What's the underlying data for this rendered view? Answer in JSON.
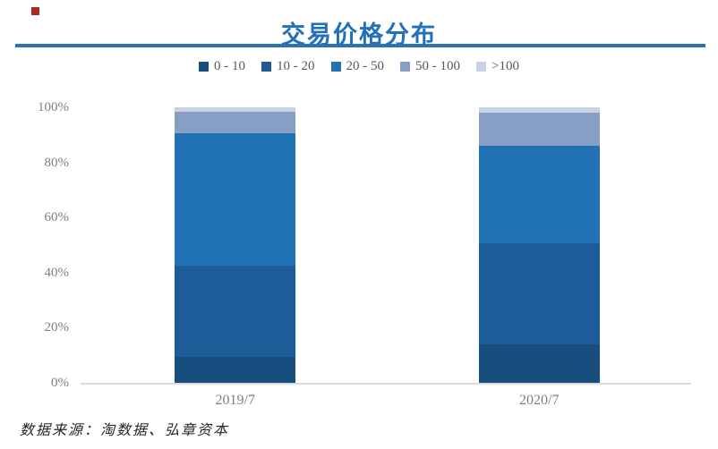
{
  "slide": {
    "background": "#FFFFFF",
    "decoration_color": "#AE2A21"
  },
  "header": {
    "title": "交易价格分布",
    "title_color": "#2271B8",
    "underline_color": "#2A72B8"
  },
  "footer": {
    "source_text": "数据来源：淘数据、弘章资本",
    "text_color": "#262626"
  },
  "chart_data": {
    "type": "bar",
    "stacked": true,
    "title": "交易价格分布",
    "xlabel": "",
    "ylabel": "",
    "categories": [
      "2019/7",
      "2020/7"
    ],
    "series": [
      {
        "name": "0 - 10",
        "color": "#174E7E",
        "values": [
          9.5,
          14
        ]
      },
      {
        "name": "10 - 20",
        "color": "#1E5C99",
        "values": [
          33,
          36.5
        ]
      },
      {
        "name": "20 - 50",
        "color": "#2171B5",
        "values": [
          48,
          35.5
        ]
      },
      {
        "name": "50 - 100",
        "color": "#879EC5",
        "values": [
          8,
          12
        ]
      },
      {
        "name": ">100",
        "color": "#C9D1E5",
        "values": [
          1.5,
          2
        ]
      }
    ],
    "ylim": [
      0,
      100
    ],
    "yticks": [
      0,
      20,
      40,
      60,
      80,
      100
    ],
    "ytick_labels": [
      "0%",
      "20%",
      "40%",
      "60%",
      "80%",
      "100%"
    ],
    "grid": false,
    "legend_position": "top",
    "axis_label_color": "#7F7F7F",
    "legend_text_color": "#595959",
    "axis_line_color": "#D9D9D9"
  }
}
